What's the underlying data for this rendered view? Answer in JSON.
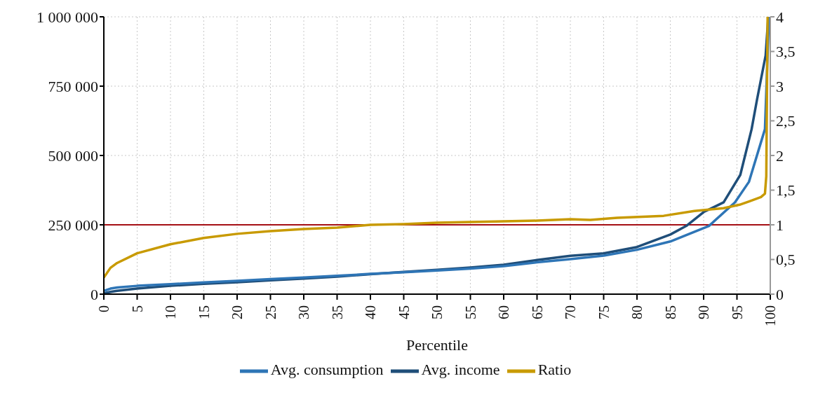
{
  "chart_data": {
    "type": "line",
    "xlabel": "Percentile",
    "xlim": [
      0,
      100
    ],
    "xticks": [
      0,
      5,
      10,
      15,
      20,
      25,
      30,
      35,
      40,
      45,
      50,
      55,
      60,
      65,
      70,
      75,
      80,
      85,
      90,
      95,
      100
    ],
    "ylim": [
      0,
      1000000
    ],
    "yticks": [
      {
        "value": 0,
        "label": "0"
      },
      {
        "value": 250000,
        "label": "250 000"
      },
      {
        "value": 500000,
        "label": "500 000"
      },
      {
        "value": 750000,
        "label": "750 000"
      },
      {
        "value": 1000000,
        "label": "1 000 000"
      }
    ],
    "y2lim": [
      0,
      4
    ],
    "y2ticks": [
      {
        "value": 0,
        "label": "0"
      },
      {
        "value": 0.5,
        "label": "0,5"
      },
      {
        "value": 1,
        "label": "1"
      },
      {
        "value": 1.5,
        "label": "1,5"
      },
      {
        "value": 2,
        "label": "2"
      },
      {
        "value": 2.5,
        "label": "2,5"
      },
      {
        "value": 3,
        "label": "3"
      },
      {
        "value": 3.5,
        "label": "3,5"
      },
      {
        "value": 4,
        "label": "4"
      }
    ],
    "grid": true,
    "legend": "bottom",
    "marker": "none",
    "line_style": "solid",
    "ref_lines": [
      {
        "axis": "y2",
        "value": 1,
        "color": "#a50f15"
      }
    ],
    "series": [
      {
        "name": "Avg. income",
        "color": "#1f4e79",
        "x": [
          0,
          1,
          2,
          5,
          10,
          15,
          20,
          25,
          30,
          35,
          40,
          45,
          50,
          55,
          60,
          63,
          65,
          70,
          75,
          80,
          85,
          87.4,
          90,
          93,
          95.5,
          97.2,
          98,
          99.3,
          99.7
        ],
        "values": [
          3000,
          8000,
          12000,
          20000,
          30000,
          37000,
          43000,
          50000,
          56000,
          63000,
          72000,
          80000,
          88000,
          96000,
          106000,
          116000,
          123000,
          138000,
          147000,
          170000,
          215000,
          246000,
          296000,
          331000,
          430000,
          595000,
          700000,
          860000,
          1000000
        ]
      },
      {
        "name": "Avg. consumption",
        "color": "#2e75b6",
        "x": [
          0,
          1,
          2,
          5,
          10,
          15,
          20,
          25,
          30,
          35,
          40,
          45,
          50,
          55,
          60,
          63,
          65,
          70,
          75,
          80,
          85,
          90.8,
          94.7,
          96.8,
          99.2,
          99.8
        ],
        "values": [
          12000,
          20000,
          24000,
          30000,
          36000,
          42000,
          48000,
          54000,
          60000,
          66000,
          73000,
          79000,
          85000,
          92000,
          101000,
          109000,
          115000,
          126000,
          139000,
          160000,
          190000,
          246000,
          331000,
          405000,
          595000,
          1000000
        ]
      },
      {
        "name": "Ratio",
        "color": "#c89a00",
        "axis": "y2",
        "x": [
          0,
          1,
          2,
          5,
          10,
          15,
          20,
          25,
          30,
          35,
          40,
          45,
          50,
          55,
          60,
          65,
          70,
          73,
          77,
          84,
          88.6,
          93,
          95.4,
          96.9,
          98.6,
          99.2,
          99.4,
          99.6
        ],
        "values": [
          0.24,
          0.38,
          0.45,
          0.59,
          0.72,
          0.81,
          0.87,
          0.91,
          0.94,
          0.96,
          1.0,
          1.01,
          1.03,
          1.04,
          1.05,
          1.06,
          1.08,
          1.07,
          1.1,
          1.13,
          1.2,
          1.24,
          1.29,
          1.34,
          1.4,
          1.45,
          1.7,
          4.0
        ]
      }
    ]
  }
}
